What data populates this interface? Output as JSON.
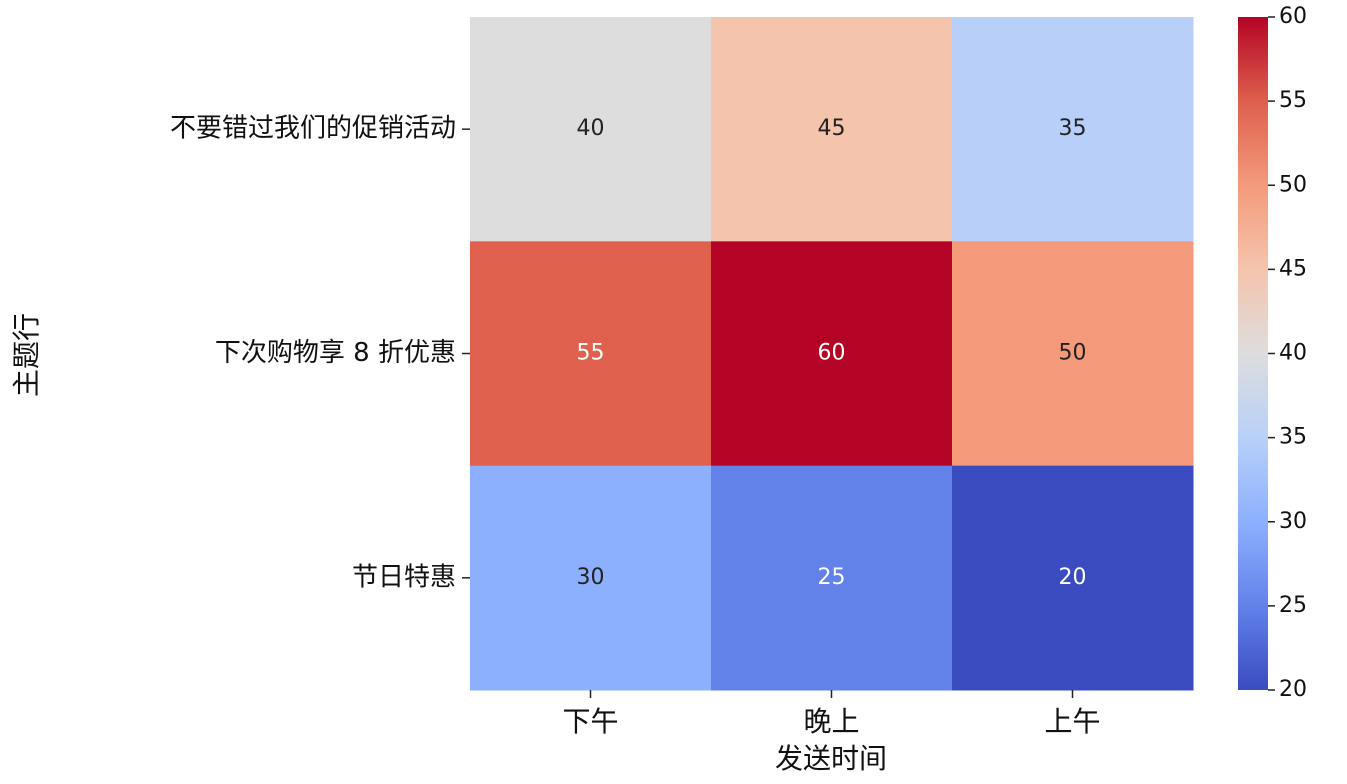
{
  "chart_data": {
    "type": "heatmap",
    "x_label": "发送时间",
    "y_label": "主题行",
    "x_categories": [
      "下午",
      "晚上",
      "上午"
    ],
    "y_categories": [
      "不要错过我们的促销活动",
      "下次购物享 8 折优惠",
      "节日特惠"
    ],
    "values": [
      [
        40,
        45,
        35
      ],
      [
        55,
        60,
        50
      ],
      [
        30,
        25,
        20
      ]
    ],
    "colormap": "coolwarm",
    "clim": [
      20,
      60
    ],
    "cticks": [
      20,
      25,
      30,
      35,
      40,
      45,
      50,
      55,
      60
    ]
  }
}
